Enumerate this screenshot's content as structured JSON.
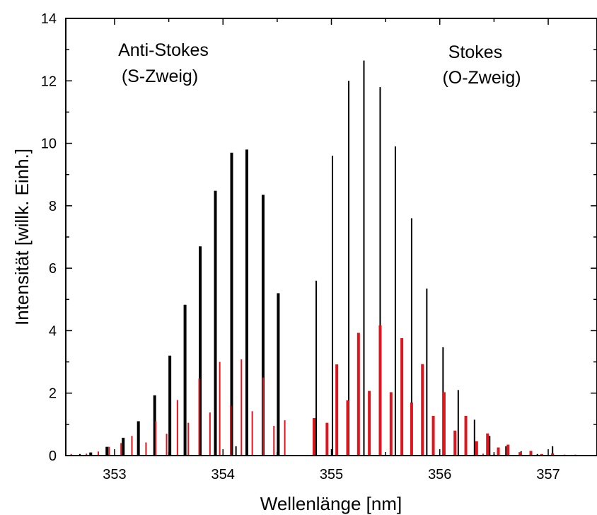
{
  "chart_data": {
    "type": "bar",
    "xlabel": "Wellenlänge [nm]",
    "ylabel": "Intensität [willk. Einh.]",
    "xlim": [
      352.55,
      357.45
    ],
    "ylim": [
      0,
      14
    ],
    "x_ticks": [
      {
        "value": 353,
        "label": "353"
      },
      {
        "value": 354,
        "label": "354"
      },
      {
        "value": 355,
        "label": "355"
      },
      {
        "value": 356,
        "label": "356"
      },
      {
        "value": 357,
        "label": "357"
      }
    ],
    "y_ticks": [
      {
        "value": 0,
        "label": "0"
      },
      {
        "value": 2,
        "label": "2"
      },
      {
        "value": 4,
        "label": "4"
      },
      {
        "value": 6,
        "label": "6"
      },
      {
        "value": 8,
        "label": "8"
      },
      {
        "value": 10,
        "label": "10"
      },
      {
        "value": 12,
        "label": "12"
      },
      {
        "value": 14,
        "label": "14"
      }
    ],
    "annotations": [
      {
        "id": "anti-stokes",
        "lines": [
          "Anti-Stokes",
          "(S-Zweig)"
        ]
      },
      {
        "id": "stokes",
        "lines": [
          "Stokes",
          "(O-Zweig)"
        ]
      }
    ],
    "series": [
      {
        "color": "#000000",
        "style": "thick",
        "points": [
          [
            352.78,
            0.1
          ],
          [
            352.93,
            0.28
          ],
          [
            353.08,
            0.57
          ],
          [
            353.22,
            1.1
          ],
          [
            353.37,
            1.93
          ],
          [
            353.51,
            3.2
          ],
          [
            353.65,
            4.83
          ],
          [
            353.79,
            6.7
          ],
          [
            353.93,
            8.48
          ],
          [
            354.08,
            9.7
          ],
          [
            354.22,
            9.8
          ],
          [
            354.37,
            8.35
          ],
          [
            354.51,
            5.2
          ]
        ]
      },
      {
        "color": "#000000",
        "style": "thin",
        "points": [
          [
            352.68,
            0.05
          ],
          [
            354.12,
            0.3
          ],
          [
            354.86,
            5.6
          ],
          [
            355.01,
            9.6
          ],
          [
            355.16,
            12.0
          ],
          [
            355.3,
            12.65
          ],
          [
            355.45,
            11.8
          ],
          [
            355.59,
            9.9
          ],
          [
            355.74,
            7.6
          ],
          [
            355.88,
            5.35
          ],
          [
            356.03,
            3.47
          ],
          [
            356.17,
            2.1
          ],
          [
            356.32,
            1.15
          ],
          [
            356.46,
            0.63
          ],
          [
            356.61,
            0.3
          ],
          [
            356.75,
            0.14
          ],
          [
            356.9,
            0.05
          ],
          [
            357.04,
            0.3
          ],
          [
            357.19,
            0.01
          ]
        ]
      },
      {
        "color": "#e0141c",
        "style": "thick",
        "points": [
          [
            354.84,
            1.2
          ],
          [
            354.96,
            1.05
          ],
          [
            355.05,
            2.92
          ],
          [
            355.15,
            1.77
          ],
          [
            355.25,
            3.93
          ],
          [
            355.35,
            2.07
          ],
          [
            355.45,
            4.17
          ],
          [
            355.55,
            2.03
          ],
          [
            355.65,
            3.76
          ],
          [
            355.74,
            1.7
          ],
          [
            355.84,
            2.93
          ],
          [
            355.94,
            1.27
          ],
          [
            356.04,
            2.03
          ],
          [
            356.14,
            0.8
          ],
          [
            356.24,
            1.27
          ],
          [
            356.34,
            0.46
          ],
          [
            356.44,
            0.71
          ],
          [
            356.54,
            0.26
          ],
          [
            356.63,
            0.35
          ],
          [
            356.74,
            0.11
          ],
          [
            356.84,
            0.15
          ],
          [
            356.94,
            0.05
          ],
          [
            357.04,
            0.07
          ]
        ]
      },
      {
        "color": "#e0141c",
        "style": "thin",
        "points": [
          [
            352.6,
            0.05
          ],
          [
            352.74,
            0.06
          ],
          [
            352.85,
            0.13
          ],
          [
            352.95,
            0.28
          ],
          [
            353.06,
            0.4
          ],
          [
            353.16,
            0.63
          ],
          [
            353.29,
            0.42
          ],
          [
            353.38,
            1.1
          ],
          [
            353.48,
            0.7
          ],
          [
            353.58,
            1.78
          ],
          [
            353.68,
            1.05
          ],
          [
            353.78,
            2.47
          ],
          [
            353.88,
            1.38
          ],
          [
            353.97,
            3.0
          ],
          [
            354.07,
            1.6
          ],
          [
            354.17,
            3.08
          ],
          [
            354.27,
            1.42
          ],
          [
            354.37,
            2.5
          ],
          [
            354.47,
            0.95
          ],
          [
            354.57,
            1.13
          ],
          [
            356.4,
            0.06
          ],
          [
            356.5,
            0.05
          ],
          [
            357.15,
            0.03
          ],
          [
            357.25,
            0.03
          ]
        ]
      }
    ]
  }
}
